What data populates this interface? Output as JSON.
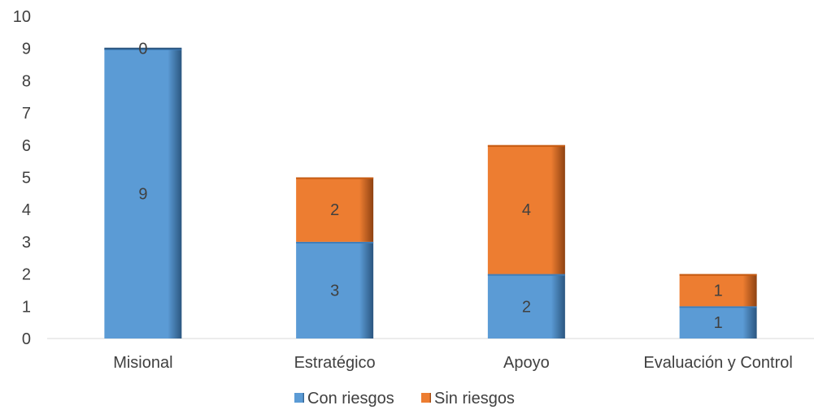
{
  "chart_data": {
    "type": "bar",
    "stacked": true,
    "categories": [
      "Misional",
      "Estratégico",
      "Apoyo",
      "Evaluación y Control"
    ],
    "series": [
      {
        "name": "Con riesgos",
        "values": [
          9,
          3,
          2,
          1
        ],
        "color": "#5B9BD5"
      },
      {
        "name": "Sin riesgos",
        "values": [
          0,
          2,
          4,
          1
        ],
        "color": "#ED7D31"
      }
    ],
    "ylim": [
      0,
      10
    ],
    "yticks": [
      "0",
      "1",
      "2",
      "3",
      "4",
      "5",
      "6",
      "7",
      "8",
      "9",
      "10"
    ],
    "grid": false,
    "legend_position": "bottom"
  }
}
